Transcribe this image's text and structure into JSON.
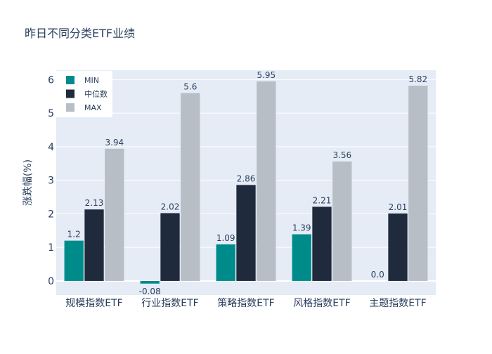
{
  "chart_data": {
    "type": "bar",
    "title": "昨日不同分类ETF业绩",
    "xlabel": "",
    "ylabel": "涨跌幅(%)",
    "categories": [
      "规模指数ETF",
      "行业指数ETF",
      "策略指数ETF",
      "风格指数ETF",
      "主题指数ETF"
    ],
    "series": [
      {
        "name": "MIN",
        "color": "#008b8b",
        "values": [
          1.2,
          -0.08,
          1.09,
          1.39,
          0.0
        ]
      },
      {
        "name": "中位数",
        "color": "#1f2a3c",
        "values": [
          2.13,
          2.02,
          2.86,
          2.21,
          2.01
        ]
      },
      {
        "name": "MAX",
        "color": "#b7bec6",
        "values": [
          3.94,
          5.6,
          5.95,
          3.56,
          5.82
        ]
      }
    ],
    "ylim": [
      -0.42,
      6.28
    ],
    "yticks": [
      0,
      1,
      2,
      3,
      4,
      5,
      6
    ],
    "grid": true,
    "legend_position": "top-left",
    "plot_bgcolor": "#e5ecf6"
  }
}
